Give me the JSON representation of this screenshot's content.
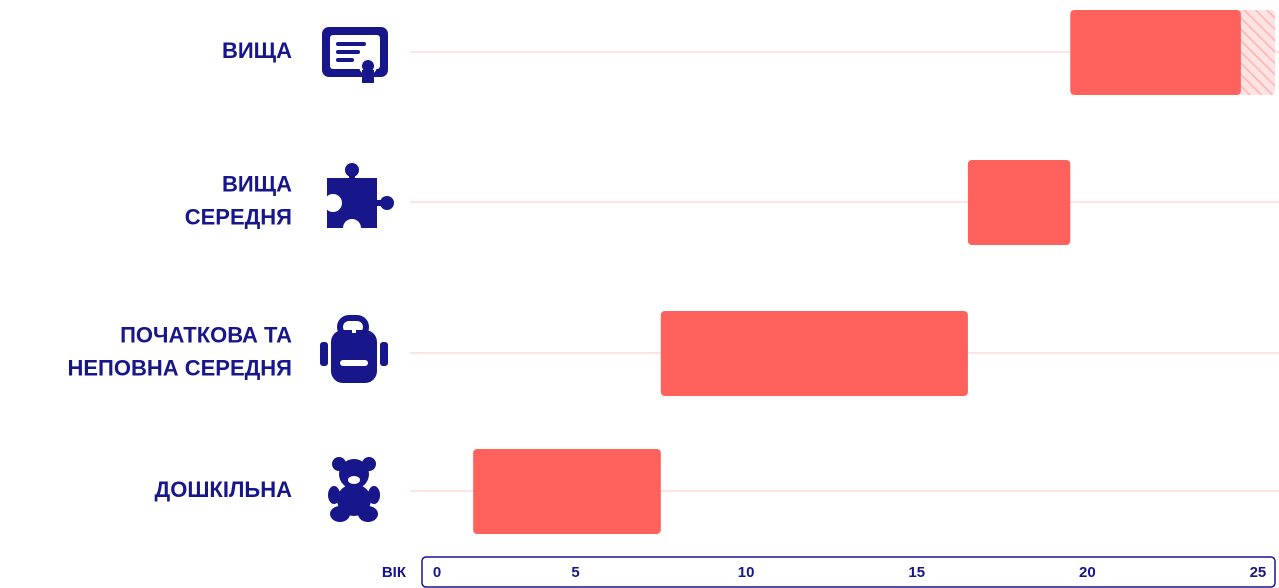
{
  "chart_data": {
    "type": "range-bar",
    "categories": [
      [
        "ВИЩА"
      ],
      [
        "ВИЩА",
        "СЕРЕДНЯ"
      ],
      [
        "ПОЧАТКОВА ТА",
        "НЕПОВНА СЕРЕДНЯ"
      ],
      [
        "ДОШКІЛЬНА"
      ]
    ],
    "start": [
      19.5,
      16.5,
      7.5,
      2
    ],
    "end": [
      24.5,
      19.5,
      16.5,
      7.5
    ],
    "extended_end": [
      25.5,
      null,
      null,
      null
    ],
    "color": "#ff625c",
    "xlabel": "ВІК",
    "xlim": [
      0.5,
      25.5
    ],
    "xticks": [
      0,
      5,
      10,
      15,
      20,
      25
    ],
    "grid": true
  }
}
